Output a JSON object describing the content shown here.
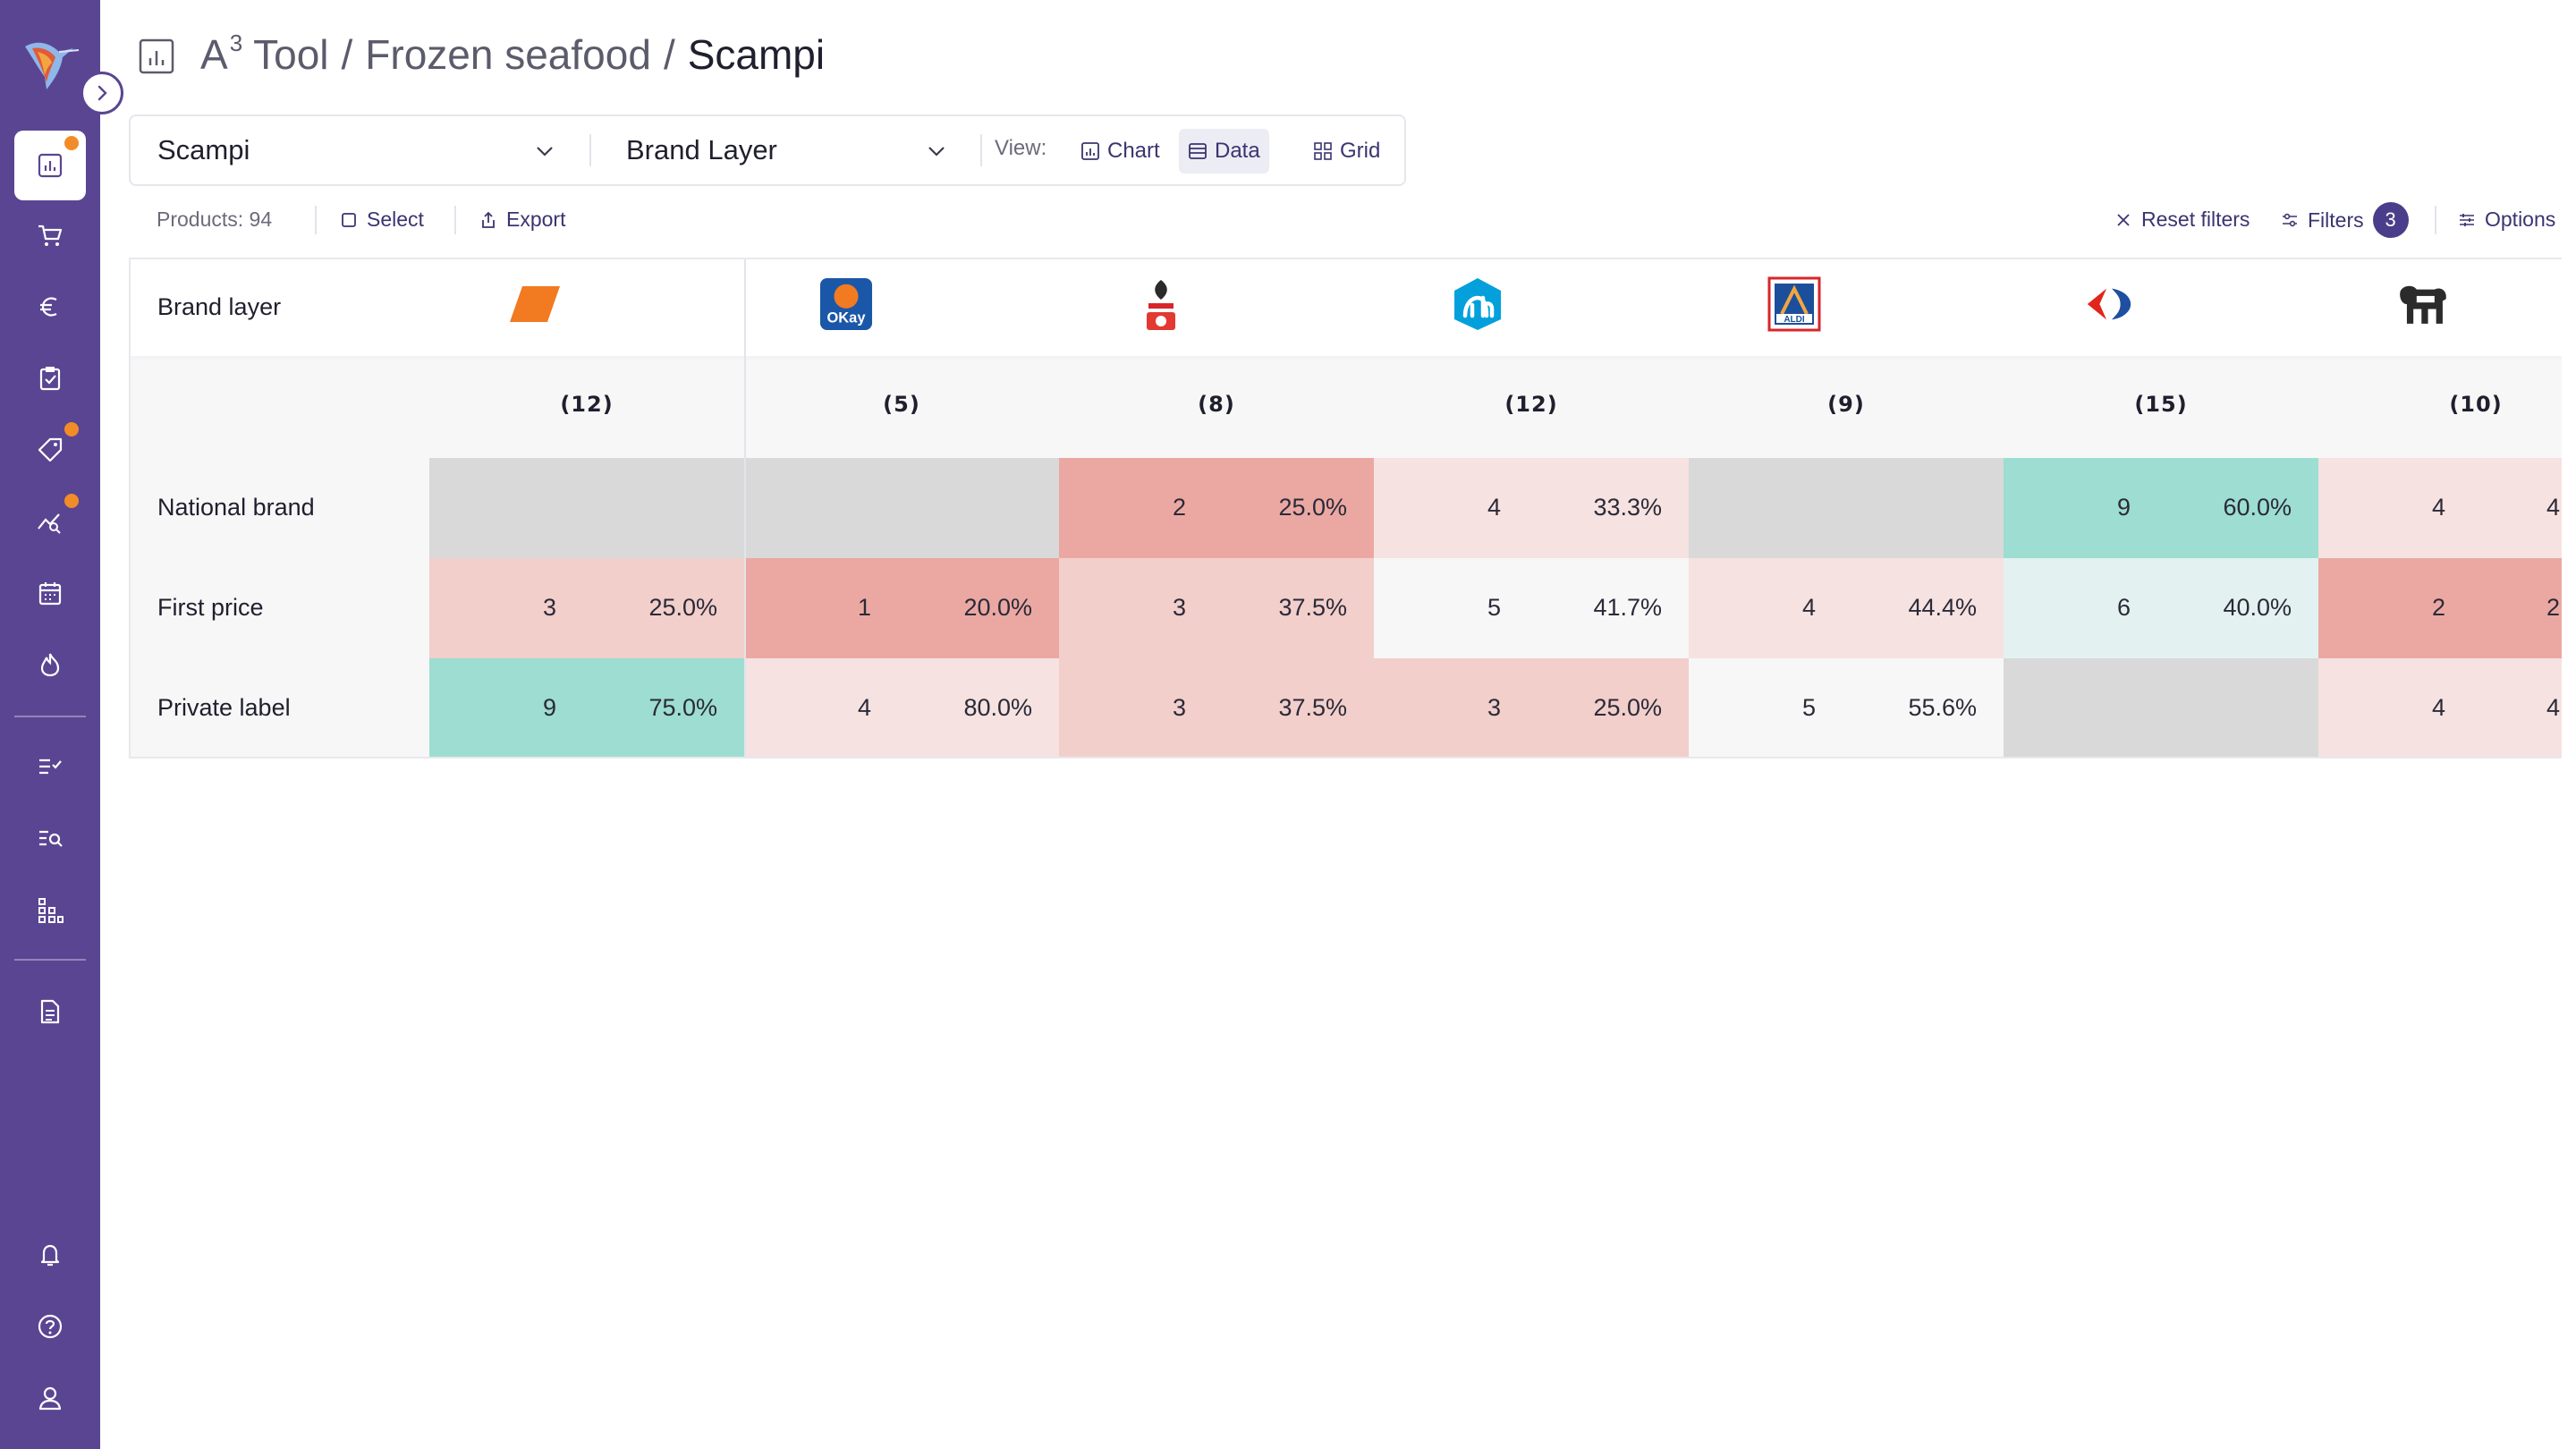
{
  "header": {
    "title_part1": "A",
    "title_sup": "3",
    "title_part1b": " Tool",
    "crumb2": "Frozen seafood",
    "crumb3": "Scampi",
    "separator": "/"
  },
  "toolbar": {
    "product_select": "Scampi",
    "layer_select": "Brand Layer",
    "view_label": "View:",
    "view_chart": "Chart",
    "view_data": "Data",
    "view_grid": "Grid",
    "active_view": "Data"
  },
  "actions": {
    "products_label": "Products: 94",
    "select": "Select",
    "export": "Export",
    "reset_filters": "Reset filters",
    "filters": "Filters",
    "filters_count": "3",
    "options": "Options"
  },
  "colors": {
    "sidebar": "#5a4593",
    "accent_dot": "#f28c28",
    "high": "#9dddd2",
    "high_light": "#e3f1f1",
    "low_strong": "#eba8a2",
    "low_mid": "#f2cfcb",
    "low_light": "#f6e2e0",
    "neutral_empty": "#d9d9d9",
    "neutral_white": "#f7f7f7"
  },
  "table": {
    "corner_label": "Brand layer",
    "retailers": [
      {
        "logo": "orange-parallelogram-logo",
        "count": "(12)"
      },
      {
        "logo": "okay-logo",
        "count": "(5)"
      },
      {
        "logo": "spar-logo",
        "count": "(8)"
      },
      {
        "logo": "albert-heijn-logo",
        "count": "(12)"
      },
      {
        "logo": "aldi-logo",
        "count": "(9)"
      },
      {
        "logo": "carrefour-logo",
        "count": "(15)"
      },
      {
        "logo": "delhaize-lion-logo",
        "count": "(10)"
      }
    ],
    "okay_text": "OKay",
    "aldi_text": "ALDI",
    "rows": [
      {
        "label": "National brand",
        "cells": [
          {
            "n": "",
            "p": "",
            "shade": "empty"
          },
          {
            "n": "",
            "p": "",
            "shade": "empty"
          },
          {
            "n": "2",
            "p": "25.0%",
            "shade": "low_strong"
          },
          {
            "n": "4",
            "p": "33.3%",
            "shade": "low_light"
          },
          {
            "n": "",
            "p": "",
            "shade": "empty"
          },
          {
            "n": "9",
            "p": "60.0%",
            "shade": "high"
          },
          {
            "n": "4",
            "p": "4",
            "shade": "low_light"
          }
        ]
      },
      {
        "label": "First price",
        "cells": [
          {
            "n": "3",
            "p": "25.0%",
            "shade": "low_mid"
          },
          {
            "n": "1",
            "p": "20.0%",
            "shade": "low_strong"
          },
          {
            "n": "3",
            "p": "37.5%",
            "shade": "low_mid"
          },
          {
            "n": "5",
            "p": "41.7%",
            "shade": "white"
          },
          {
            "n": "4",
            "p": "44.4%",
            "shade": "low_light"
          },
          {
            "n": "6",
            "p": "40.0%",
            "shade": "high_light"
          },
          {
            "n": "2",
            "p": "2",
            "shade": "low_strong"
          }
        ]
      },
      {
        "label": "Private label",
        "cells": [
          {
            "n": "9",
            "p": "75.0%",
            "shade": "high"
          },
          {
            "n": "4",
            "p": "80.0%",
            "shade": "low_light"
          },
          {
            "n": "3",
            "p": "37.5%",
            "shade": "low_mid"
          },
          {
            "n": "3",
            "p": "25.0%",
            "shade": "low_mid"
          },
          {
            "n": "5",
            "p": "55.6%",
            "shade": "white"
          },
          {
            "n": "",
            "p": "",
            "shade": "empty"
          },
          {
            "n": "4",
            "p": "4",
            "shade": "low_light"
          }
        ]
      }
    ]
  }
}
